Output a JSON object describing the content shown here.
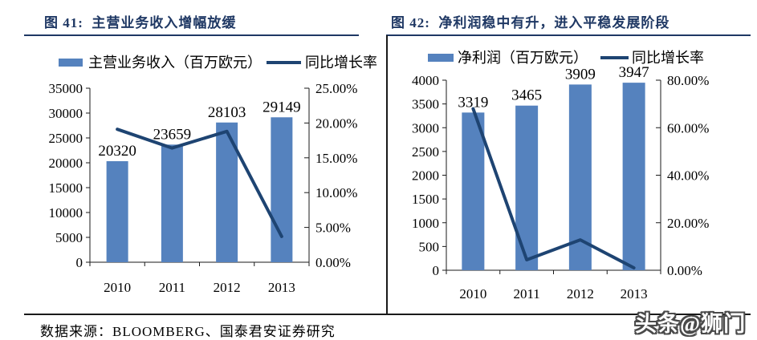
{
  "page": {
    "background": "#ffffff",
    "source_note": "数据来源：BLOOMBERG、国泰君安证券研究",
    "watermark": "头条@狮门"
  },
  "chart_data": [
    {
      "type": "bar",
      "title": "图 41:  主营业务收入增幅放缓",
      "categories": [
        "2010",
        "2011",
        "2012",
        "2013"
      ],
      "series": [
        {
          "name": "主营业务收入（百万欧元）",
          "kind": "bar",
          "axis": "left",
          "values": [
            20320,
            23659,
            28103,
            29149
          ],
          "data_labels": [
            "20320",
            "23659",
            "28103",
            "29149"
          ]
        },
        {
          "name": "同比增长率",
          "kind": "line",
          "axis": "right",
          "values_percent": [
            19.1,
            16.4,
            18.8,
            3.7
          ]
        }
      ],
      "left_axis": {
        "min": 0,
        "max": 35000,
        "step": 5000,
        "tick_labels": [
          "35000",
          "30000",
          "25000",
          "20000",
          "15000",
          "10000",
          "5000",
          "0"
        ]
      },
      "right_axis": {
        "min": 0,
        "max": 25,
        "step": 5,
        "tick_labels": [
          "25.00%",
          "20.00%",
          "15.00%",
          "10.00%",
          "5.00%",
          "0.00%"
        ]
      },
      "legend_position": "top",
      "grid": false,
      "colors": {
        "bar": "#5582BE",
        "line": "#1E4472"
      }
    },
    {
      "type": "bar",
      "title": "图 42:  净利润稳中有升，进入平稳发展阶段",
      "categories": [
        "2010",
        "2011",
        "2012",
        "2013"
      ],
      "series": [
        {
          "name": "净利润（百万欧元）",
          "kind": "bar",
          "axis": "left",
          "values": [
            3319,
            3465,
            3909,
            3947
          ],
          "data_labels": [
            "3319",
            "3465",
            "3909",
            "3947"
          ]
        },
        {
          "name": "同比增长率",
          "kind": "line",
          "axis": "right",
          "values_percent": [
            68.0,
            4.4,
            12.8,
            1.0
          ]
        }
      ],
      "left_axis": {
        "min": 0,
        "max": 4000,
        "step": 500,
        "tick_labels": [
          "4000",
          "3500",
          "3000",
          "2500",
          "2000",
          "1500",
          "1000",
          "500",
          "0"
        ]
      },
      "right_axis": {
        "min": 0,
        "max": 80,
        "step": 20,
        "tick_labels": [
          "80.00%",
          "60.00%",
          "40.00%",
          "20.00%",
          "0.00%"
        ]
      },
      "legend_position": "top",
      "grid": false,
      "colors": {
        "bar": "#5582BE",
        "line": "#1E4472"
      }
    }
  ]
}
